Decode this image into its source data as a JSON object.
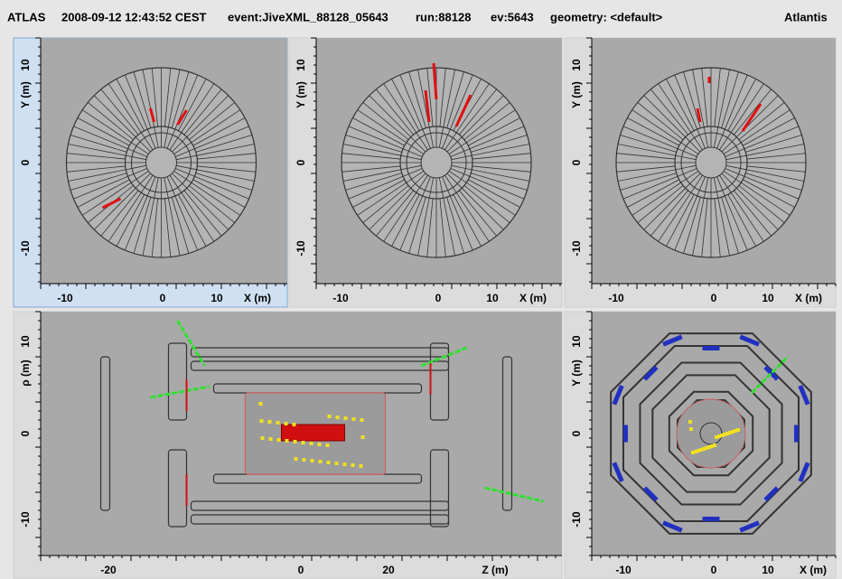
{
  "header": {
    "experiment": "ATLAS",
    "datetime": "2008-09-12 12:43:52 CEST",
    "event": "event:JiveXML_88128_05643",
    "run": "run:88128",
    "ev": "ev:5643",
    "geometry": "geometry: <default>",
    "app": "Atlantis"
  },
  "panels": [
    {
      "x_ticks": [
        "-10",
        "0",
        "10"
      ],
      "x_label": "X (m)",
      "y_ticks": [
        "10",
        "0",
        "-10"
      ],
      "y_label": "Y (m)"
    },
    {
      "x_ticks": [
        "-10",
        "0",
        "10"
      ],
      "x_label": "X (m)",
      "y_ticks": [
        "10",
        "0",
        "-10"
      ],
      "y_label": "Y (m)"
    },
    {
      "x_ticks": [
        "-10",
        "0",
        "10"
      ],
      "x_label": "X (m)",
      "y_ticks": [
        "10",
        "0",
        "-10"
      ],
      "y_label": "Y (m)"
    },
    {
      "x_ticks": [
        "-20",
        "0",
        "20"
      ],
      "x_label": "Z (m)",
      "y_ticks": [
        "10",
        "0",
        "-10"
      ],
      "y_label": "ρ (m)"
    },
    {
      "x_ticks": [
        "-10",
        "0",
        "10"
      ],
      "x_label": "X (m)",
      "y_ticks": [
        "10",
        "0",
        "-10"
      ],
      "y_label": "Y (m)"
    }
  ]
}
